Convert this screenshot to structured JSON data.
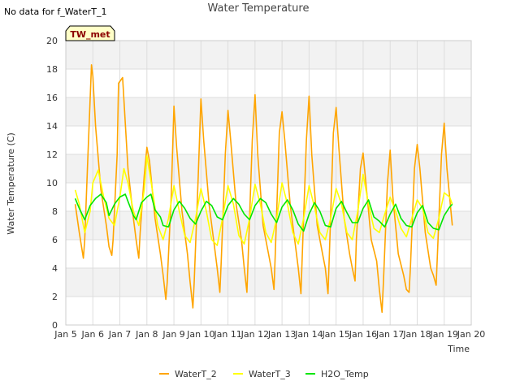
{
  "chart_data": {
    "type": "line",
    "title": "Water Temperature",
    "note": "No data for f_WaterT_1",
    "badge": "TW_met",
    "xlabel": "Time",
    "ylabel": "Water Temperature (C)",
    "ylim": [
      0,
      20
    ],
    "yticks": [
      0,
      2,
      4,
      6,
      8,
      10,
      12,
      14,
      16,
      18,
      20
    ],
    "xlim": [
      5,
      20
    ],
    "xticks": [
      5,
      6,
      7,
      8,
      9,
      10,
      11,
      12,
      13,
      14,
      15,
      16,
      17,
      18,
      19,
      20
    ],
    "xtick_labels": [
      "Jan 5",
      "Jan 6",
      "Jan 7",
      "Jan 8",
      "Jan 9",
      "Jan 10",
      "Jan 11",
      "Jan 12",
      "Jan 13",
      "Jan 14",
      "Jan 15",
      "Jan 16",
      "Jan 17",
      "Jan 18",
      "Jan 19",
      "Jan 20"
    ],
    "grid": true,
    "background_bands": true,
    "legend_position": "bottom",
    "series": [
      {
        "name": "WaterT_2",
        "color": "#ffa500",
        "x": [
          5.35,
          5.5,
          5.65,
          5.7,
          5.8,
          5.95,
          6.0,
          6.1,
          6.3,
          6.5,
          6.6,
          6.7,
          6.75,
          6.9,
          6.95,
          7.1,
          7.3,
          7.5,
          7.6,
          7.7,
          7.75,
          7.9,
          8.0,
          8.1,
          8.3,
          8.5,
          8.6,
          8.7,
          8.75,
          8.9,
          9.0,
          9.1,
          9.3,
          9.5,
          9.6,
          9.7,
          9.75,
          9.9,
          10.0,
          10.1,
          10.3,
          10.5,
          10.6,
          10.7,
          10.75,
          10.9,
          11.0,
          11.1,
          11.3,
          11.5,
          11.6,
          11.7,
          11.75,
          11.9,
          12.0,
          12.1,
          12.3,
          12.5,
          12.6,
          12.7,
          12.75,
          12.9,
          13.0,
          13.1,
          13.3,
          13.5,
          13.6,
          13.7,
          13.75,
          13.9,
          14.0,
          14.1,
          14.3,
          14.5,
          14.6,
          14.7,
          14.75,
          14.9,
          15.0,
          15.1,
          15.3,
          15.5,
          15.6,
          15.7,
          15.75,
          15.9,
          16.0,
          16.1,
          16.3,
          16.5,
          16.6,
          16.7,
          16.75,
          16.9,
          17.0,
          17.1,
          17.3,
          17.5,
          17.6,
          17.7,
          17.75,
          17.9,
          18.0,
          18.1,
          18.3,
          18.5,
          18.6,
          18.7,
          18.75,
          18.9,
          19.0,
          19.1,
          19.3
        ],
        "y": [
          8.5,
          6.5,
          4.7,
          6.0,
          11.0,
          18.3,
          17.5,
          14.0,
          9.5,
          7.0,
          5.5,
          4.9,
          6.0,
          12.0,
          17.0,
          17.4,
          11.0,
          7.5,
          6.0,
          4.7,
          6.5,
          10.5,
          12.5,
          11.5,
          7.5,
          5.0,
          3.5,
          1.8,
          3.0,
          9.0,
          15.4,
          12.5,
          8.0,
          5.0,
          3.0,
          1.2,
          3.0,
          10.5,
          15.9,
          13.0,
          8.5,
          5.5,
          4.0,
          2.3,
          4.5,
          12.0,
          15.1,
          13.0,
          8.5,
          6.0,
          4.0,
          2.3,
          5.0,
          13.0,
          16.2,
          12.0,
          7.0,
          5.0,
          4.0,
          2.5,
          5.0,
          13.5,
          15.0,
          13.0,
          8.5,
          5.5,
          4.0,
          2.2,
          5.0,
          13.0,
          16.1,
          12.0,
          7.0,
          5.0,
          4.0,
          2.2,
          5.0,
          13.5,
          15.3,
          12.5,
          7.5,
          5.0,
          4.0,
          3.1,
          6.0,
          11.0,
          12.1,
          10.0,
          6.0,
          4.5,
          2.5,
          0.9,
          3.0,
          10.0,
          12.3,
          9.0,
          5.0,
          3.5,
          2.5,
          2.3,
          4.0,
          11.0,
          12.7,
          11.0,
          6.5,
          4.0,
          3.5,
          2.8,
          5.0,
          12.0,
          14.2,
          11.0,
          7.0
        ]
      },
      {
        "name": "WaterT_3",
        "color": "#ffff00",
        "x": [
          5.35,
          5.5,
          5.7,
          5.9,
          6.0,
          6.2,
          6.4,
          6.6,
          6.8,
          7.0,
          7.15,
          7.3,
          7.5,
          7.7,
          7.9,
          8.0,
          8.2,
          8.4,
          8.6,
          8.8,
          9.0,
          9.2,
          9.4,
          9.6,
          9.8,
          10.0,
          10.2,
          10.4,
          10.6,
          10.8,
          11.0,
          11.2,
          11.4,
          11.6,
          11.8,
          12.0,
          12.2,
          12.4,
          12.6,
          12.8,
          13.0,
          13.2,
          13.4,
          13.6,
          13.8,
          14.0,
          14.2,
          14.4,
          14.6,
          14.8,
          15.0,
          15.2,
          15.4,
          15.6,
          15.8,
          16.0,
          16.2,
          16.4,
          16.6,
          16.8,
          17.0,
          17.2,
          17.4,
          17.6,
          17.8,
          18.0,
          18.2,
          18.4,
          18.6,
          18.8,
          19.0,
          19.2,
          19.3
        ],
        "y": [
          9.5,
          8.5,
          6.5,
          8.0,
          10.0,
          10.9,
          9.0,
          7.5,
          7.0,
          9.0,
          11.0,
          10.0,
          8.0,
          7.0,
          9.5,
          11.9,
          9.5,
          7.0,
          6.0,
          7.5,
          9.8,
          8.0,
          6.3,
          5.8,
          7.5,
          9.6,
          8.0,
          6.0,
          5.6,
          7.5,
          9.8,
          8.5,
          6.3,
          5.7,
          7.5,
          9.9,
          8.5,
          6.5,
          5.8,
          7.5,
          10.0,
          8.5,
          6.5,
          5.7,
          7.5,
          9.8,
          8.3,
          6.5,
          6.0,
          7.5,
          9.6,
          8.5,
          6.5,
          6.0,
          8.0,
          10.6,
          8.5,
          6.8,
          6.5,
          7.8,
          9.0,
          8.0,
          6.8,
          6.2,
          7.5,
          8.8,
          8.2,
          6.5,
          6.1,
          7.5,
          9.3,
          9.0,
          8.5
        ]
      },
      {
        "name": "H2O_Temp",
        "color": "#00e600",
        "x": [
          5.35,
          5.5,
          5.7,
          5.9,
          6.1,
          6.3,
          6.5,
          6.6,
          6.8,
          7.0,
          7.2,
          7.3,
          7.5,
          7.6,
          7.8,
          8.0,
          8.15,
          8.3,
          8.5,
          8.6,
          8.8,
          9.0,
          9.2,
          9.4,
          9.6,
          9.8,
          10.0,
          10.2,
          10.4,
          10.6,
          10.8,
          11.0,
          11.2,
          11.4,
          11.6,
          11.8,
          12.0,
          12.2,
          12.4,
          12.6,
          12.8,
          13.0,
          13.2,
          13.4,
          13.6,
          13.8,
          14.0,
          14.2,
          14.4,
          14.6,
          14.8,
          15.0,
          15.2,
          15.4,
          15.6,
          15.8,
          16.0,
          16.2,
          16.4,
          16.6,
          16.8,
          17.0,
          17.2,
          17.4,
          17.6,
          17.8,
          18.0,
          18.2,
          18.4,
          18.6,
          18.8,
          19.0,
          19.2,
          19.3
        ],
        "y": [
          8.9,
          8.2,
          7.4,
          8.4,
          8.9,
          9.2,
          8.6,
          7.7,
          8.5,
          9.0,
          9.2,
          8.7,
          7.7,
          7.4,
          8.6,
          9.0,
          9.2,
          8.1,
          7.6,
          7.0,
          6.9,
          8.1,
          8.7,
          8.2,
          7.5,
          7.1,
          8.0,
          8.7,
          8.4,
          7.6,
          7.4,
          8.4,
          8.9,
          8.5,
          7.8,
          7.4,
          8.4,
          8.9,
          8.6,
          7.8,
          7.2,
          8.3,
          8.8,
          8.1,
          7.1,
          6.6,
          7.8,
          8.6,
          8.0,
          7.0,
          6.9,
          8.2,
          8.7,
          7.9,
          7.2,
          7.2,
          8.2,
          8.8,
          7.6,
          7.3,
          6.9,
          7.8,
          8.5,
          7.5,
          7.0,
          6.9,
          7.9,
          8.4,
          7.2,
          6.8,
          6.7,
          7.7,
          8.3,
          8.5
        ]
      }
    ]
  }
}
